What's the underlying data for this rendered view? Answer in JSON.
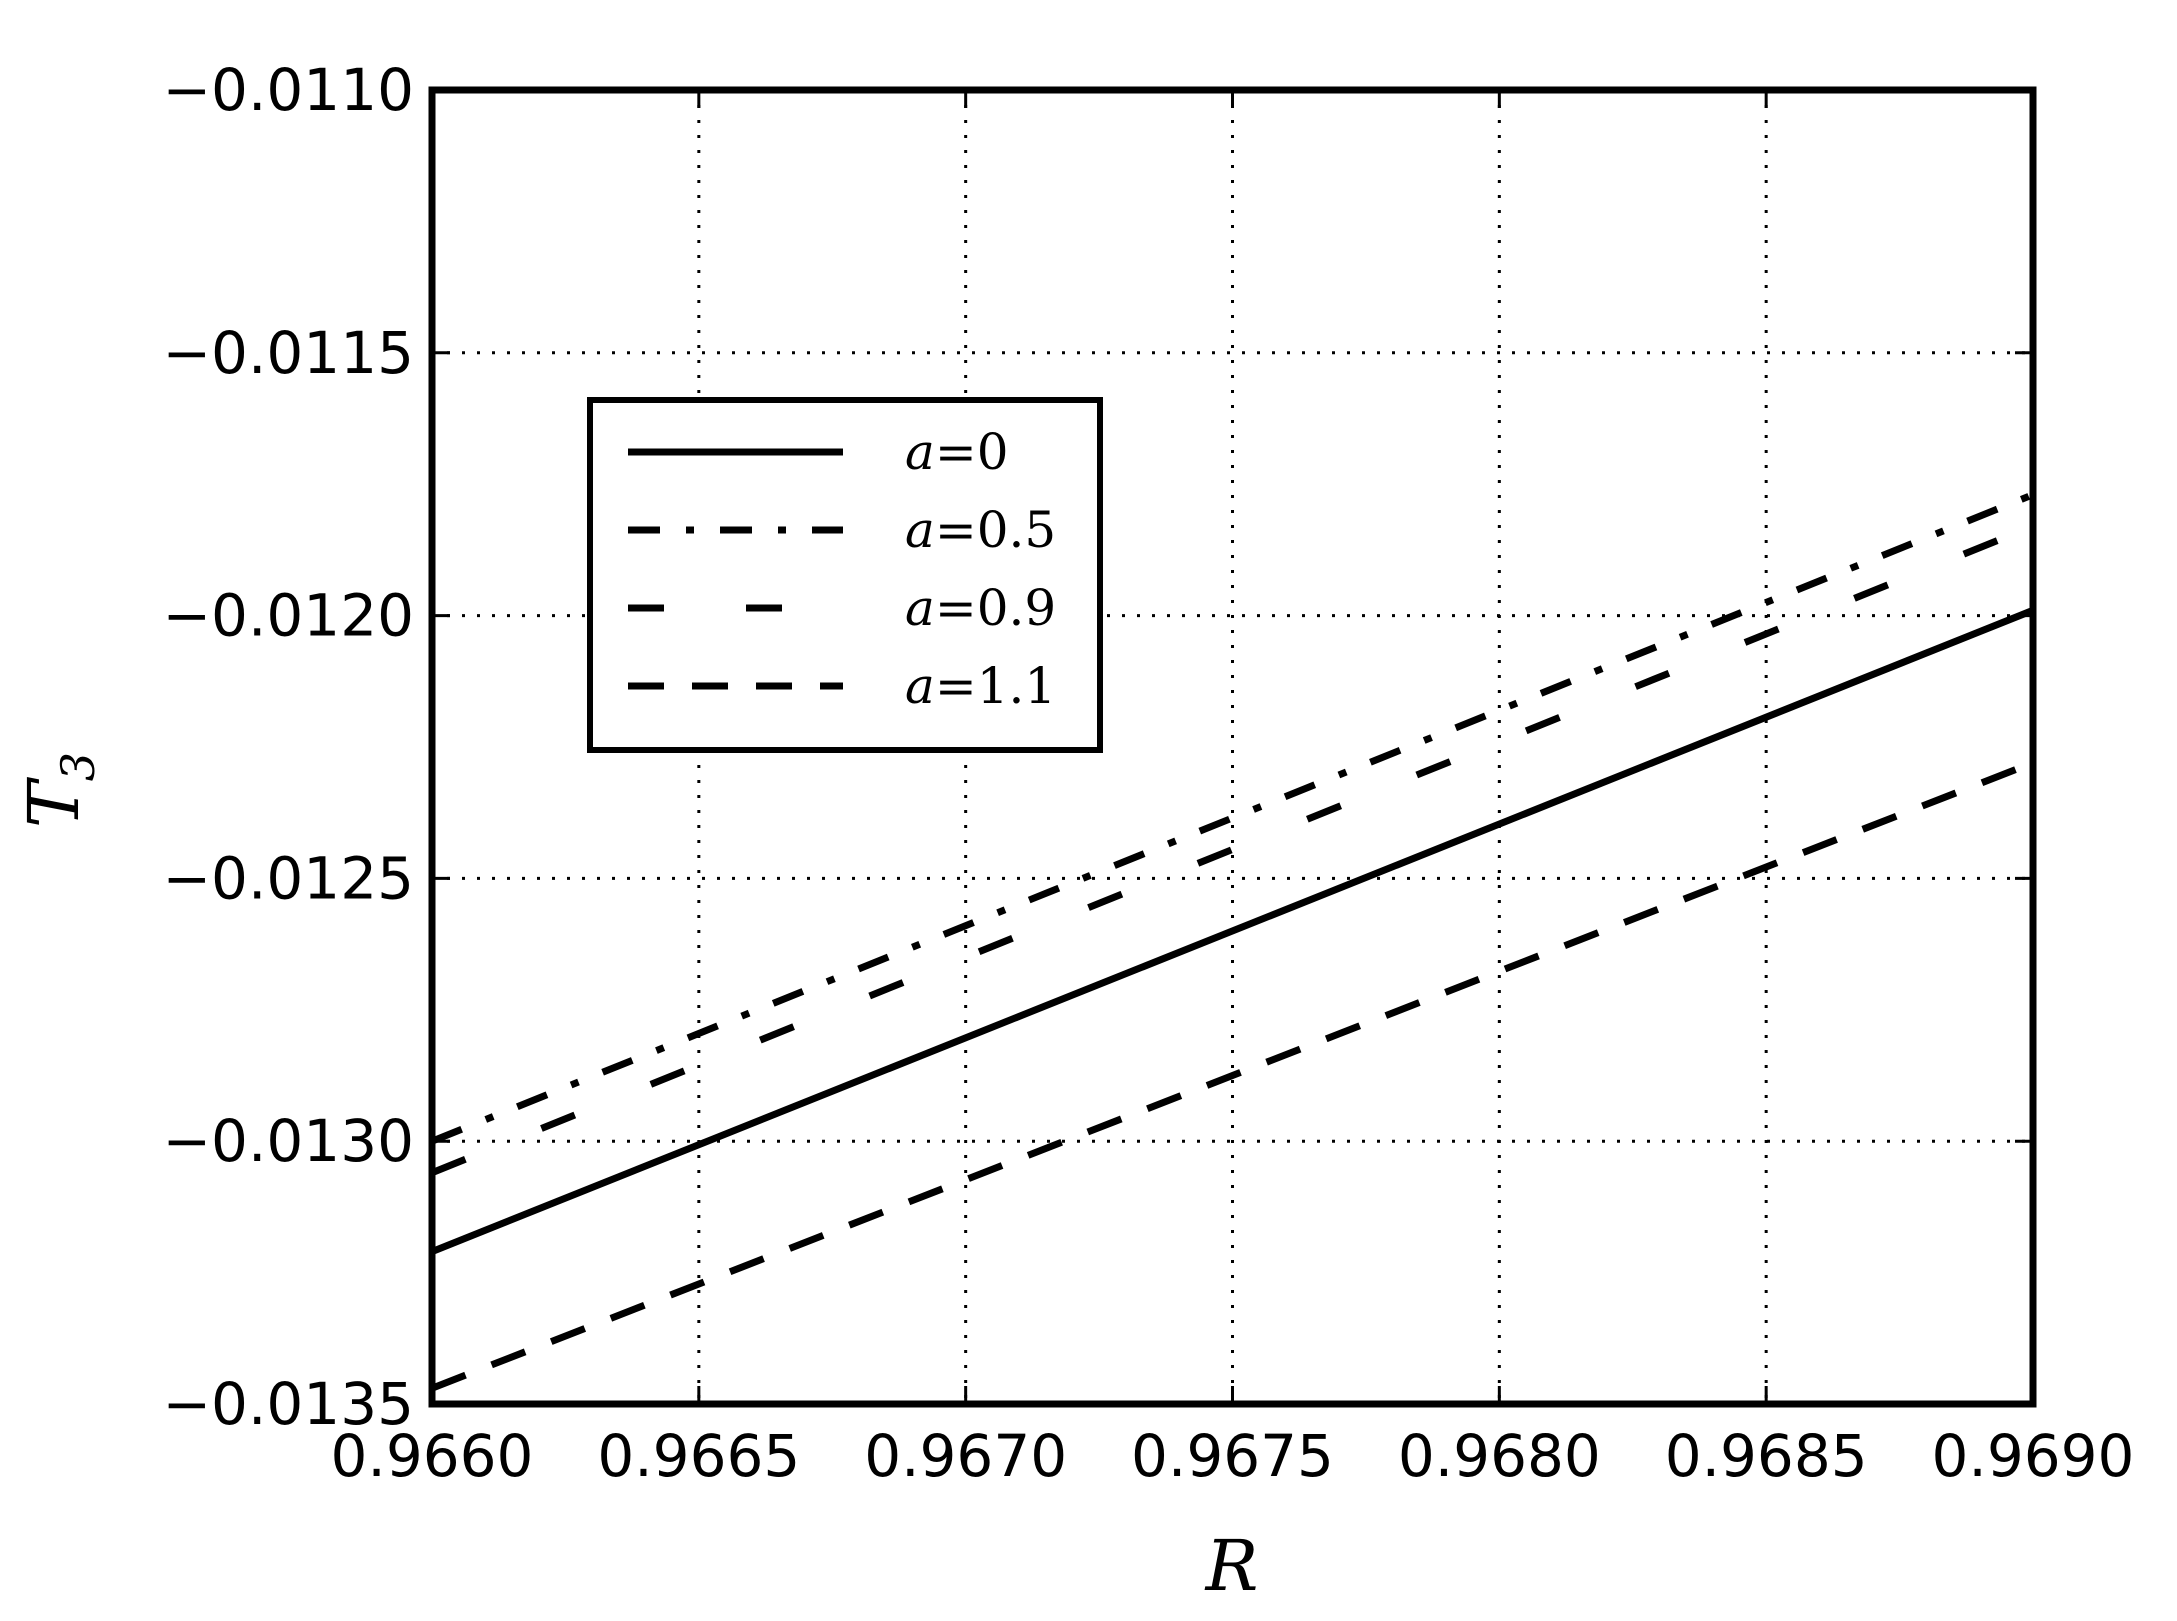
{
  "chart_data": {
    "type": "line",
    "xlabel": "R",
    "ylabel": "T",
    "ylabel_sub": "3",
    "xlim": [
      0.966,
      0.969
    ],
    "ylim": [
      -0.0135,
      -0.011
    ],
    "x_ticks": [
      0.966,
      0.9665,
      0.967,
      0.9675,
      0.968,
      0.9685,
      0.969
    ],
    "x_tick_labels": [
      "0.9660",
      "0.9665",
      "0.9670",
      "0.9675",
      "0.9680",
      "0.9685",
      "0.9690"
    ],
    "y_ticks": [
      -0.011,
      -0.0115,
      -0.012,
      -0.0125,
      -0.013,
      -0.0135
    ],
    "y_tick_labels": [
      "−0.0110",
      "−0.0115",
      "−0.0120",
      "−0.0125",
      "−0.0130",
      "−0.0135"
    ],
    "grid": true,
    "legend_position": "upper-left",
    "series": [
      {
        "name": "a = 0",
        "legend_var": "a",
        "legend_val": "0",
        "style": "solid",
        "x": [
          0.966,
          0.969
        ],
        "y": [
          -0.01321,
          -0.01199
        ]
      },
      {
        "name": "a = 0.5",
        "legend_var": "a",
        "legend_val": "0.5",
        "style": "dashdot",
        "x": [
          0.966,
          0.969
        ],
        "y": [
          -0.013,
          -0.01177
        ]
      },
      {
        "name": "a = 0.9",
        "legend_var": "a",
        "legend_val": "0.9",
        "style": "longdash",
        "x": [
          0.966,
          0.969
        ],
        "y": [
          -0.01306,
          -0.01183
        ]
      },
      {
        "name": "a = 1.1",
        "legend_var": "a",
        "legend_val": "1.1",
        "style": "dashed",
        "x": [
          0.966,
          0.969
        ],
        "y": [
          -0.01347,
          -0.01228
        ]
      }
    ]
  }
}
